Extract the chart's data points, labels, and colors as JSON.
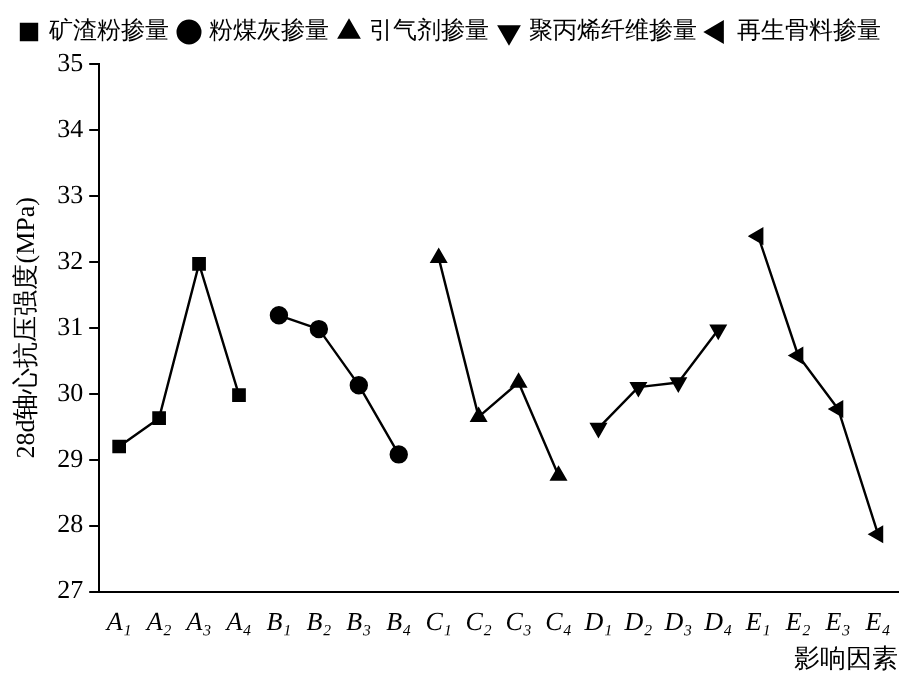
{
  "chart_data": {
    "type": "line",
    "xlabel": "影响因素",
    "ylabel": "28d轴心抗压强度(MPa)",
    "categories": [
      "A₁",
      "A₂",
      "A₃",
      "A₄",
      "B₁",
      "B₂",
      "B₃",
      "B₄",
      "C₁",
      "C₂",
      "C₃",
      "C₄",
      "D₁",
      "D₂",
      "D₃",
      "D₄",
      "E₁",
      "E₂",
      "E₃",
      "E₄"
    ],
    "series": [
      {
        "name": "矿渣粉掺量",
        "color": "#000000",
        "marker": "square",
        "values": [
          29.2,
          29.63,
          31.97,
          29.98,
          null,
          null,
          null,
          null,
          null,
          null,
          null,
          null,
          null,
          null,
          null,
          null,
          null,
          null,
          null,
          null
        ]
      },
      {
        "name": "粉煤灰掺量",
        "color": "#000000",
        "marker": "circle",
        "values": [
          null,
          null,
          null,
          null,
          31.19,
          30.98,
          30.13,
          29.08,
          null,
          null,
          null,
          null,
          null,
          null,
          null,
          null,
          null,
          null,
          null,
          null
        ]
      },
      {
        "name": "引气剂掺量",
        "color": "#000000",
        "marker": "triangle",
        "values": [
          null,
          null,
          null,
          null,
          null,
          null,
          null,
          null,
          32.06,
          29.65,
          30.17,
          28.76,
          null,
          null,
          null,
          null,
          null,
          null,
          null,
          null
        ]
      },
      {
        "name": "聚丙烯纤维掺量",
        "color": "#000000",
        "marker": "triangle-down",
        "values": [
          null,
          null,
          null,
          null,
          null,
          null,
          null,
          null,
          null,
          null,
          null,
          null,
          29.48,
          30.1,
          30.17,
          30.97,
          null,
          null,
          null,
          null
        ]
      },
      {
        "name": "再生骨料掺量",
        "color": "#000000",
        "marker": "triangle-left",
        "values": [
          null,
          null,
          null,
          null,
          null,
          null,
          null,
          null,
          null,
          null,
          null,
          null,
          null,
          null,
          null,
          null,
          32.39,
          30.58,
          29.77,
          27.87
        ]
      }
    ],
    "ylim": [
      27,
      35
    ],
    "yticks": [
      27,
      28,
      29,
      30,
      31,
      32,
      33,
      34,
      35
    ],
    "grid": false,
    "legend": "top",
    "line_style": "solid"
  }
}
